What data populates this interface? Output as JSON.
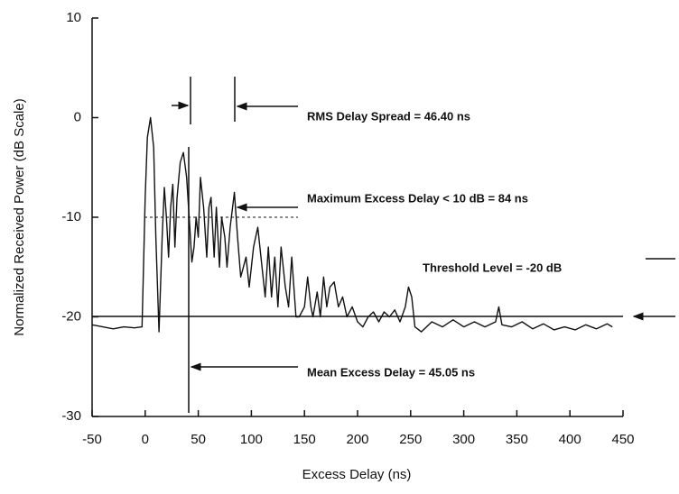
{
  "chart_data": {
    "type": "line",
    "xlabel": "Excess Delay (ns)",
    "ylabel": "Normalized Received Power (dB Scale)",
    "xlim": [
      -50,
      450
    ],
    "ylim": [
      -30,
      10
    ],
    "xticks": [
      -50,
      0,
      50,
      100,
      150,
      200,
      250,
      300,
      350,
      400,
      450
    ],
    "yticks": [
      10,
      0,
      -10,
      -20,
      -30
    ],
    "color": "#111111",
    "x": [
      -50,
      -40,
      -30,
      -20,
      -10,
      -3,
      -2,
      0,
      2,
      5,
      8,
      10,
      13,
      16,
      18,
      20,
      22,
      24,
      26,
      28,
      30,
      33,
      36,
      39,
      42,
      44,
      46,
      48,
      50,
      52,
      55,
      58,
      60,
      62,
      65,
      67,
      70,
      72,
      75,
      77,
      80,
      84,
      87,
      90,
      95,
      98,
      102,
      106,
      110,
      113,
      116,
      119,
      122,
      125,
      128,
      132,
      135,
      138,
      142,
      145,
      150,
      153,
      156,
      158,
      162,
      165,
      168,
      171,
      174,
      178,
      182,
      186,
      190,
      195,
      200,
      205,
      210,
      215,
      220,
      225,
      230,
      235,
      240,
      245,
      248,
      251,
      254,
      260,
      270,
      280,
      290,
      300,
      310,
      320,
      330,
      333,
      336,
      345,
      355,
      365,
      375,
      385,
      395,
      405,
      415,
      425,
      435,
      440
    ],
    "values": [
      -20.8,
      -21,
      -21.2,
      -21,
      -21.1,
      -21,
      -17,
      -8,
      -2,
      0,
      -3,
      -12,
      -21.5,
      -12,
      -7,
      -10,
      -14,
      -9,
      -6.7,
      -13,
      -8,
      -4.5,
      -3.5,
      -6,
      -11,
      -14.5,
      -13,
      -10,
      -12,
      -6,
      -9,
      -14,
      -9,
      -8,
      -14,
      -9,
      -15,
      -10,
      -12,
      -15,
      -11,
      -7.5,
      -12,
      -16,
      -14,
      -17,
      -13,
      -11,
      -15,
      -18,
      -13,
      -18,
      -14,
      -19,
      -13,
      -17,
      -19,
      -14,
      -20,
      -20,
      -19,
      -16,
      -19,
      -20,
      -17.5,
      -20,
      -16,
      -19,
      -17,
      -16.5,
      -19,
      -18,
      -20,
      -19,
      -20.5,
      -21,
      -20,
      -19.5,
      -20.5,
      -19.5,
      -20,
      -19.3,
      -20.5,
      -19,
      -17,
      -18,
      -21,
      -21.5,
      -20.5,
      -21,
      -20.3,
      -21,
      -20.5,
      -21,
      -20.5,
      -19,
      -20.8,
      -21,
      -20.5,
      -21.2,
      -20.7,
      -21.3,
      -21,
      -21.3,
      -20.8,
      -21.2,
      -20.7,
      -21
    ],
    "annotations": [
      "RMS Delay Spread = 46.40 ns",
      "Maximum Excess Delay < 10 dB = 84 ns",
      "Threshold Level = -20 dB",
      "Mean Excess Delay = 45.05 ns"
    ]
  }
}
